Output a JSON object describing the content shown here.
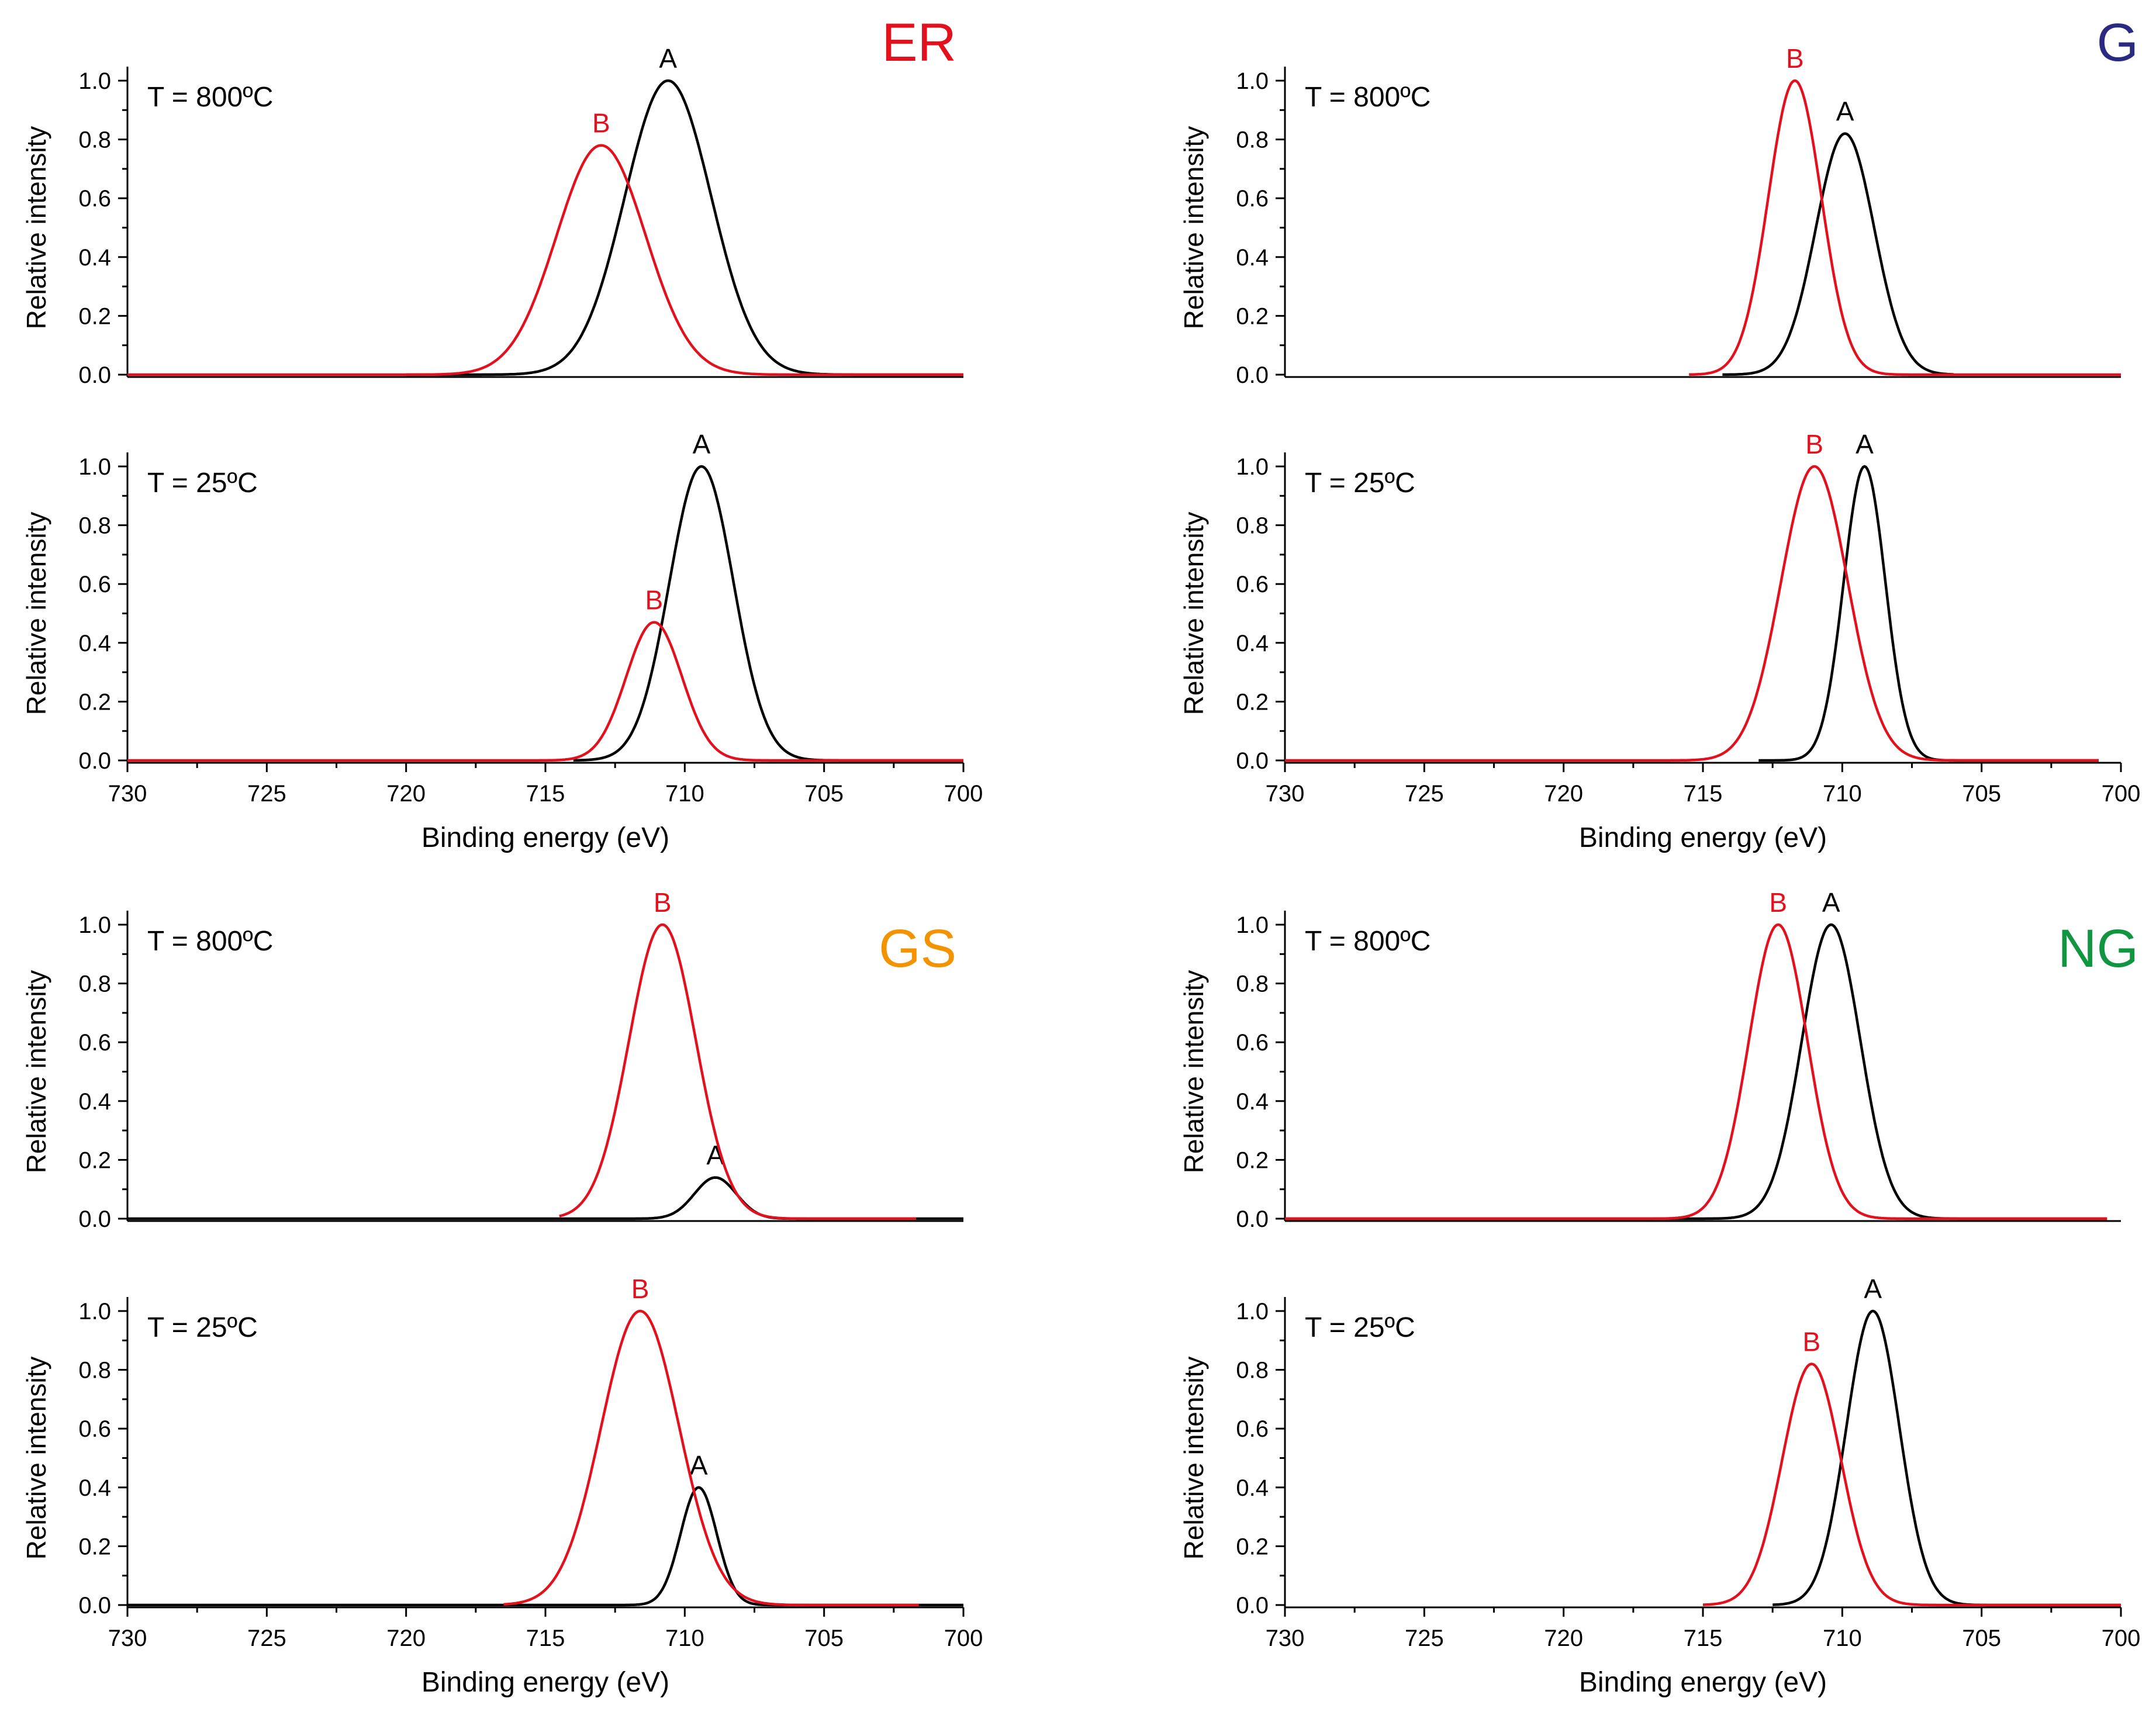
{
  "figure": {
    "groups": [
      {
        "label": "ER",
        "color": "#e3101e"
      },
      {
        "label": "G",
        "color": "#2b2a83"
      },
      {
        "label": "GS",
        "color": "#f39300"
      },
      {
        "label": "NG",
        "color": "#109640"
      }
    ]
  },
  "chart_data": [
    {
      "type": "line",
      "group": "ER",
      "panel": "top",
      "temperature_label": "T = 800ºC",
      "ylabel": "Relative intensity",
      "xlabel": "",
      "xlim": [
        730,
        700
      ],
      "x_reversed": true,
      "ylim": [
        0,
        1.0
      ],
      "y_ticks": [
        "0.0",
        "0.2",
        "0.4",
        "0.6",
        "0.8",
        "1.0"
      ],
      "x_ticks": [],
      "series": [
        {
          "name": "A",
          "color": "#000000",
          "center": 710.6,
          "sigma": 1.55,
          "amplitude": 1.0,
          "range": [
            720,
            700
          ]
        },
        {
          "name": "B",
          "color": "#e3101e",
          "center": 713.0,
          "sigma": 1.6,
          "amplitude": 0.78,
          "range": [
            730,
            700
          ]
        }
      ]
    },
    {
      "type": "line",
      "group": "ER",
      "panel": "bottom",
      "temperature_label": "T = 25ºC",
      "ylabel": "Relative intensity",
      "xlabel": "Binding energy (eV)",
      "xlim": [
        730,
        700
      ],
      "x_reversed": true,
      "ylim": [
        0,
        1.0
      ],
      "y_ticks": [
        "0.0",
        "0.2",
        "0.4",
        "0.6",
        "0.8",
        "1.0"
      ],
      "x_ticks": [
        "730",
        "725",
        "720",
        "715",
        "710",
        "705",
        "700"
      ],
      "series": [
        {
          "name": "A",
          "color": "#000000",
          "center": 709.4,
          "sigma": 1.15,
          "amplitude": 1.0,
          "range": [
            714,
            700
          ]
        },
        {
          "name": "B",
          "color": "#e3101e",
          "center": 711.1,
          "sigma": 1.0,
          "amplitude": 0.47,
          "range": [
            730,
            700
          ]
        }
      ]
    },
    {
      "type": "line",
      "group": "G",
      "panel": "top",
      "temperature_label": "T = 800ºC",
      "ylabel": "Relative intensity",
      "xlabel": "",
      "xlim": [
        730,
        700
      ],
      "x_reversed": true,
      "ylim": [
        0,
        1.0
      ],
      "y_ticks": [
        "0.0",
        "0.2",
        "0.4",
        "0.6",
        "0.8",
        "1.0"
      ],
      "x_ticks": [],
      "series": [
        {
          "name": "A",
          "color": "#000000",
          "center": 709.9,
          "sigma": 1.05,
          "amplitude": 0.82,
          "range": [
            714.3,
            706
          ]
        },
        {
          "name": "B",
          "color": "#e3101e",
          "center": 711.7,
          "sigma": 0.95,
          "amplitude": 1.0,
          "range": [
            715.5,
            700
          ]
        }
      ]
    },
    {
      "type": "line",
      "group": "G",
      "panel": "bottom",
      "temperature_label": "T = 25ºC",
      "ylabel": "Relative intensity",
      "xlabel": "Binding energy (eV)",
      "xlim": [
        730,
        700
      ],
      "x_reversed": true,
      "ylim": [
        0,
        1.0
      ],
      "y_ticks": [
        "0.0",
        "0.2",
        "0.4",
        "0.6",
        "0.8",
        "1.0"
      ],
      "x_ticks": [
        "730",
        "725",
        "720",
        "715",
        "710",
        "705",
        "700"
      ],
      "series": [
        {
          "name": "A",
          "color": "#000000",
          "center": 709.2,
          "sigma": 0.75,
          "amplitude": 1.0,
          "range": [
            713,
            700.8
          ]
        },
        {
          "name": "B",
          "color": "#e3101e",
          "center": 711.0,
          "sigma": 1.2,
          "amplitude": 1.0,
          "range": [
            730,
            700.8
          ]
        }
      ]
    },
    {
      "type": "line",
      "group": "GS",
      "panel": "top",
      "temperature_label": "T = 800ºC",
      "ylabel": "Relative intensity",
      "xlabel": "",
      "xlim": [
        730,
        700
      ],
      "x_reversed": true,
      "ylim": [
        0,
        1.0
      ],
      "y_ticks": [
        "0.0",
        "0.2",
        "0.4",
        "0.6",
        "0.8",
        "1.0"
      ],
      "x_ticks": [],
      "series": [
        {
          "name": "A",
          "color": "#000000",
          "center": 708.9,
          "sigma": 0.75,
          "amplitude": 0.14,
          "range": [
            730,
            700
          ]
        },
        {
          "name": "B",
          "color": "#e3101e",
          "center": 710.8,
          "sigma": 1.2,
          "amplitude": 1.0,
          "range": [
            714.5,
            701.7
          ]
        }
      ]
    },
    {
      "type": "line",
      "group": "GS",
      "panel": "bottom",
      "temperature_label": "T = 25ºC",
      "ylabel": "Relative intensity",
      "xlabel": "Binding energy (eV)",
      "xlim": [
        730,
        700
      ],
      "x_reversed": true,
      "ylim": [
        0,
        1.0
      ],
      "y_ticks": [
        "0.0",
        "0.2",
        "0.4",
        "0.6",
        "0.8",
        "1.0"
      ],
      "x_ticks": [
        "730",
        "725",
        "720",
        "715",
        "710",
        "705",
        "700"
      ],
      "series": [
        {
          "name": "A",
          "color": "#000000",
          "center": 709.5,
          "sigma": 0.65,
          "amplitude": 0.4,
          "range": [
            730,
            700
          ]
        },
        {
          "name": "B",
          "color": "#e3101e",
          "center": 711.6,
          "sigma": 1.4,
          "amplitude": 1.0,
          "range": [
            716.5,
            701.6
          ]
        }
      ]
    },
    {
      "type": "line",
      "group": "NG",
      "panel": "top",
      "temperature_label": "T = 800ºC",
      "ylabel": "Relative intensity",
      "xlabel": "",
      "xlim": [
        730,
        700
      ],
      "x_reversed": true,
      "ylim": [
        0,
        1.0
      ],
      "y_ticks": [
        "0.0",
        "0.2",
        "0.4",
        "0.6",
        "0.8",
        "1.0"
      ],
      "x_ticks": [],
      "series": [
        {
          "name": "A",
          "color": "#000000",
          "center": 710.4,
          "sigma": 1.05,
          "amplitude": 1.0,
          "range": [
            730,
            700.5
          ]
        },
        {
          "name": "B",
          "color": "#e3101e",
          "center": 712.3,
          "sigma": 1.05,
          "amplitude": 1.0,
          "range": [
            730,
            700.5
          ]
        }
      ]
    },
    {
      "type": "line",
      "group": "NG",
      "panel": "bottom",
      "temperature_label": "T = 25ºC",
      "ylabel": "Relative intensity",
      "xlabel": "Binding energy (eV)",
      "xlim": [
        730,
        700
      ],
      "x_reversed": true,
      "ylim": [
        0,
        1.0
      ],
      "y_ticks": [
        "0.0",
        "0.2",
        "0.4",
        "0.6",
        "0.8",
        "1.0"
      ],
      "x_ticks": [
        "730",
        "725",
        "720",
        "715",
        "710",
        "705",
        "700"
      ],
      "series": [
        {
          "name": "A",
          "color": "#000000",
          "center": 708.9,
          "sigma": 0.95,
          "amplitude": 1.0,
          "range": [
            712.5,
            700
          ]
        },
        {
          "name": "B",
          "color": "#e3101e",
          "center": 711.1,
          "sigma": 1.05,
          "amplitude": 0.82,
          "range": [
            715,
            700
          ]
        }
      ]
    }
  ]
}
